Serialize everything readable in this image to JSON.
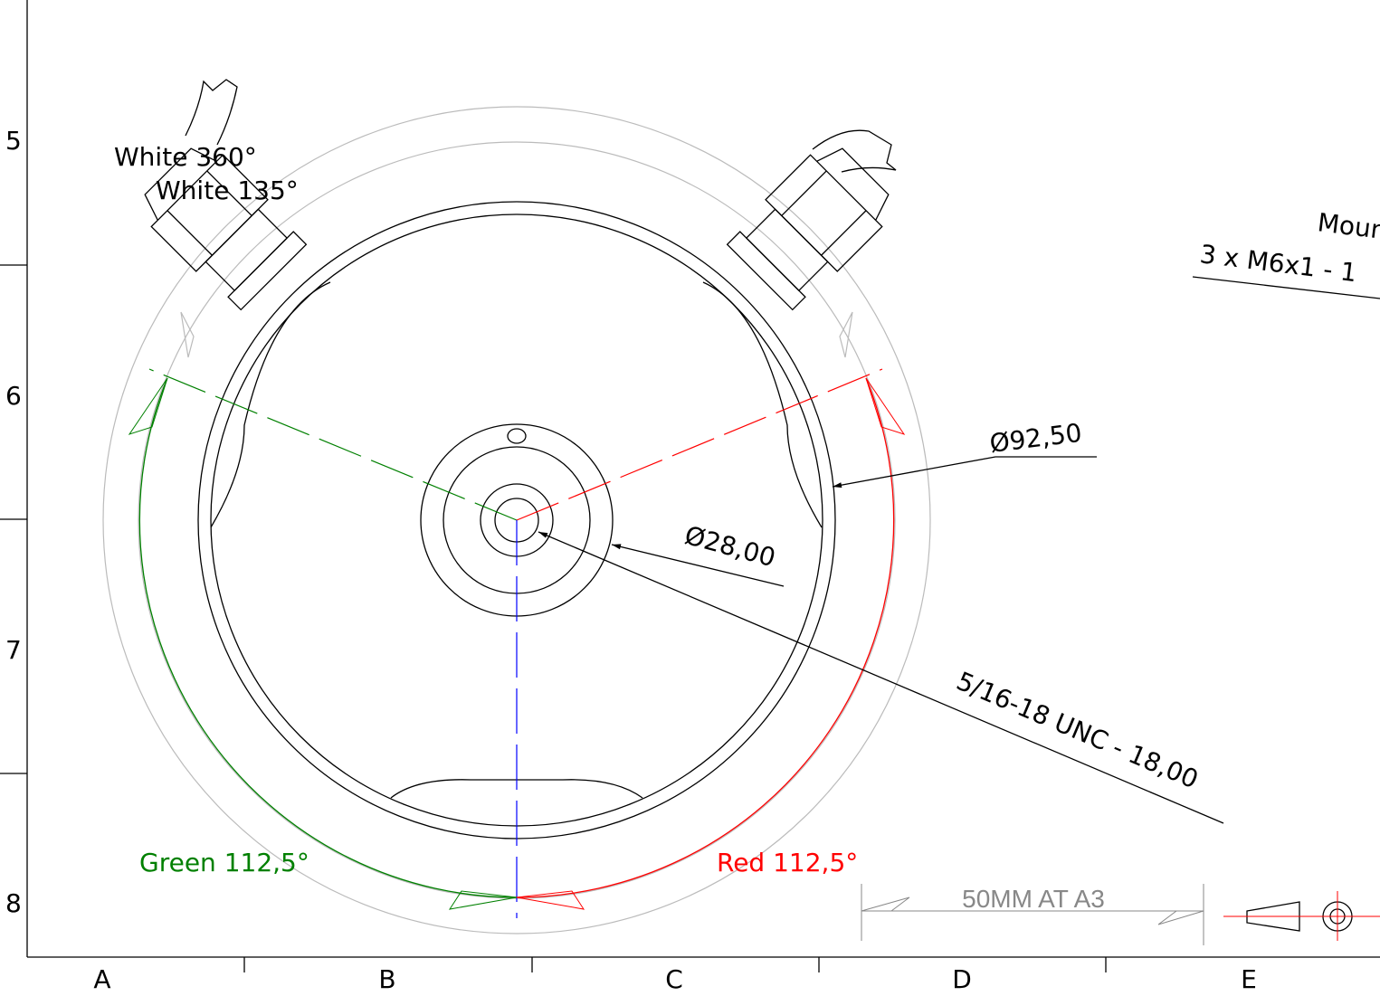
{
  "rows": [
    "5",
    "6",
    "7",
    "8"
  ],
  "columns": [
    "A",
    "B",
    "C",
    "D",
    "E"
  ],
  "annotations": {
    "white_360": "White 360°",
    "white_135": "White 135°",
    "mount": "Moun",
    "mount_thread": "3 x M6x1 - 1",
    "dia_outer": "Ø92,50",
    "dia_inner": "Ø28,00",
    "thread": "5/16-18 UNC - 18,00",
    "green": "Green 112,5°",
    "red": "Red 112,5°",
    "scale": "50MM AT A3"
  }
}
